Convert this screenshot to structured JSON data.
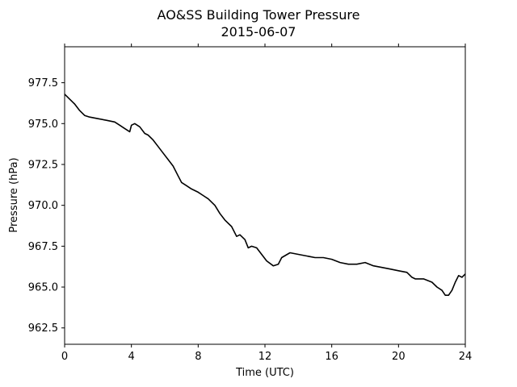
{
  "chart_data": {
    "type": "line",
    "title": "AO&SS Building Tower Pressure",
    "subtitle": "2015-06-07",
    "xlabel": "Time (UTC)",
    "ylabel": "Pressure (hPa)",
    "xlim": [
      0,
      24
    ],
    "ylim": [
      961.5,
      979.7
    ],
    "xticks": [
      0,
      4,
      8,
      12,
      16,
      20,
      24
    ],
    "yticks": [
      962.5,
      965.0,
      967.5,
      970.0,
      972.5,
      975.0,
      977.5
    ],
    "ytick_labels": [
      "962.5",
      "965.0",
      "967.5",
      "970.0",
      "972.5",
      "975.0",
      "977.5"
    ],
    "grid": false,
    "series": [
      {
        "color": "#000000",
        "x": [
          0,
          0.3,
          0.6,
          0.9,
          1.2,
          1.5,
          2.0,
          2.5,
          3.0,
          3.3,
          3.6,
          3.9,
          4.0,
          4.2,
          4.5,
          4.8,
          5.0,
          5.3,
          5.6,
          5.9,
          6.2,
          6.5,
          6.8,
          7.0,
          7.3,
          7.6,
          8.0,
          8.3,
          8.6,
          9.0,
          9.3,
          9.6,
          10.0,
          10.3,
          10.5,
          10.8,
          11.0,
          11.2,
          11.5,
          11.8,
          12.1,
          12.5,
          12.8,
          13.0,
          13.5,
          14.0,
          14.5,
          15.0,
          15.5,
          16.0,
          16.5,
          17.0,
          17.5,
          18.0,
          18.5,
          19.0,
          19.5,
          20.0,
          20.5,
          20.8,
          21.0,
          21.5,
          22.0,
          22.3,
          22.6,
          22.8,
          23.0,
          23.2,
          23.4,
          23.6,
          23.8,
          24.0
        ],
        "y": [
          976.8,
          976.5,
          976.2,
          975.8,
          975.5,
          975.4,
          975.3,
          975.2,
          975.1,
          974.9,
          974.7,
          974.5,
          974.9,
          975.0,
          974.8,
          974.4,
          974.3,
          974.0,
          973.6,
          973.2,
          972.8,
          972.4,
          971.8,
          971.4,
          971.2,
          971.0,
          970.8,
          970.6,
          970.4,
          970.0,
          969.5,
          969.1,
          968.7,
          968.1,
          968.2,
          967.9,
          967.4,
          967.5,
          967.4,
          967.0,
          966.6,
          966.3,
          966.4,
          966.8,
          967.1,
          967.0,
          966.9,
          966.8,
          966.8,
          966.7,
          966.5,
          966.4,
          966.4,
          966.5,
          966.3,
          966.2,
          966.1,
          966.0,
          965.9,
          965.6,
          965.5,
          965.5,
          965.3,
          965.0,
          964.8,
          964.5,
          964.5,
          964.8,
          965.3,
          965.7,
          965.6,
          965.8
        ]
      }
    ]
  }
}
